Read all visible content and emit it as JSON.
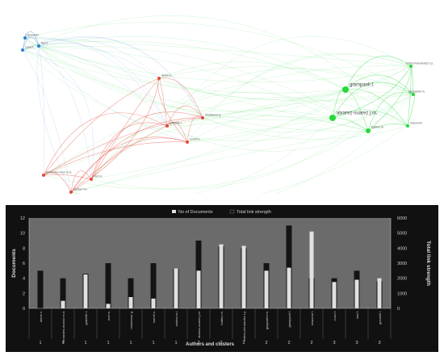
{
  "network": {
    "clusters": [
      {
        "id": 1,
        "color": "#e8483c"
      },
      {
        "id": 2,
        "color": "#27d83c"
      },
      {
        "id": 3,
        "color": "#2f7fd0"
      }
    ],
    "nodes": [
      {
        "label": "giampaoli f.",
        "cluster": 2,
        "size": "large"
      },
      {
        "label": "alvarez-suarez j.m.",
        "cluster": 2,
        "size": "large"
      },
      {
        "label": "battino m.",
        "cluster": 2,
        "size": "medium"
      },
      {
        "label": "forbes-hernandez t.y.",
        "cluster": 2,
        "size": "small"
      },
      {
        "label": "gasparrini m.",
        "cluster": 2,
        "size": "small"
      },
      {
        "label": "mazzoni l.",
        "cluster": 2,
        "size": "small"
      },
      {
        "label": "gonnelli l.",
        "cluster": 3,
        "size": "small"
      },
      {
        "label": "favi f.",
        "cluster": 3,
        "size": "small"
      },
      {
        "label": "cosci f.",
        "cluster": 3,
        "size": "small"
      },
      {
        "label": "dormi s.",
        "cluster": 1,
        "size": "small"
      },
      {
        "label": "montresor g.",
        "cluster": 1,
        "size": "small"
      },
      {
        "label": "grabelle t.",
        "cluster": 1,
        "size": "small"
      },
      {
        "label": "sorrell s.",
        "cluster": 1,
        "size": "small"
      },
      {
        "label": "fernandez-mun m.d.",
        "cluster": 1,
        "size": "small"
      },
      {
        "label": "mol m.",
        "cluster": 1,
        "size": "small"
      },
      {
        "label": "santos m.l.",
        "cluster": 1,
        "size": "small"
      }
    ]
  },
  "chart_data": {
    "type": "bar",
    "legend": [
      "No of Documents",
      "Total link strength"
    ],
    "legend_position": "top",
    "xlabel": "Authors and clusters",
    "ylabel_left": "Documents",
    "ylabel_right": "Total link strength",
    "ylim_left": [
      0,
      12
    ],
    "ylim_right": [
      0,
      6000
    ],
    "yticks_left": [
      0,
      2,
      4,
      6,
      8,
      10,
      12
    ],
    "yticks_right": [
      0,
      1000,
      2000,
      3000,
      4000,
      5000,
      6000
    ],
    "categories": [
      "dormi s.",
      "fernandez-munoz m.d.",
      "grabelle t.",
      "mol m.",
      "montresor g.",
      "sorrell s.",
      "santos m.l.",
      "alvarez-suarez j.m.",
      "battino m.",
      "forbes-hernandez t.y.",
      "gasparrini m.",
      "giampaoli f.",
      "mazzoni l.",
      "cosci f.",
      "favi f.",
      "gonnelli l."
    ],
    "clusters": [
      "1",
      "1",
      "1",
      "1",
      "1",
      "1",
      "1",
      "2",
      "2",
      "2",
      "2",
      "2",
      "2",
      "3",
      "3",
      "3"
    ],
    "series": [
      {
        "name": "No of Documents",
        "color": "#e0e0e0",
        "values": [
          0,
          1,
          4.5,
          0.6,
          1.5,
          1.3,
          5.3,
          5,
          8.5,
          8.3,
          5,
          5.4,
          10.2,
          3.5,
          3.8,
          4
        ]
      },
      {
        "name": "Total link strength",
        "color": "#141414",
        "values": [
          2500,
          2000,
          2300,
          3000,
          2000,
          3000,
          2600,
          4500,
          4100,
          4000,
          3000,
          5500,
          2000,
          2000,
          2500,
          1800
        ]
      }
    ]
  }
}
